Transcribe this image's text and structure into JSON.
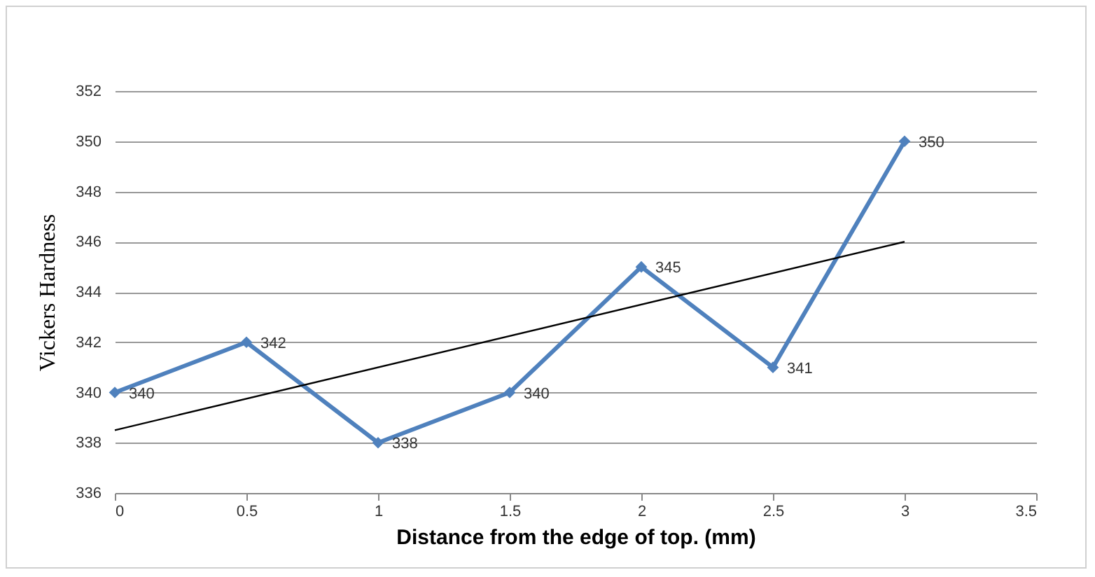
{
  "chart_data": {
    "type": "line",
    "xlabel": "Distance from the edge of top. (mm)",
    "ylabel": "Vickers Hardness",
    "x": [
      0,
      0.5,
      1,
      1.5,
      2,
      2.5,
      3
    ],
    "series": [
      {
        "color": "#4f81bd",
        "values": [
          340,
          342,
          338,
          340,
          345,
          341,
          350
        ],
        "marker": "diamond",
        "value_labels": [
          "340",
          "342",
          "338",
          "340",
          "345",
          "341",
          "350"
        ]
      },
      {
        "type": "line",
        "color": "#000000",
        "x": [
          0,
          3
        ],
        "values": [
          338.5,
          346.0
        ],
        "marker": "none"
      }
    ],
    "xlim": [
      0,
      3.5
    ],
    "xticks": [
      0,
      0.5,
      1,
      1.5,
      2,
      2.5,
      3,
      3.5
    ],
    "ylim": [
      336,
      352
    ],
    "yticks": [
      336,
      338,
      340,
      342,
      344,
      346,
      348,
      350,
      352
    ],
    "grid": "y"
  }
}
